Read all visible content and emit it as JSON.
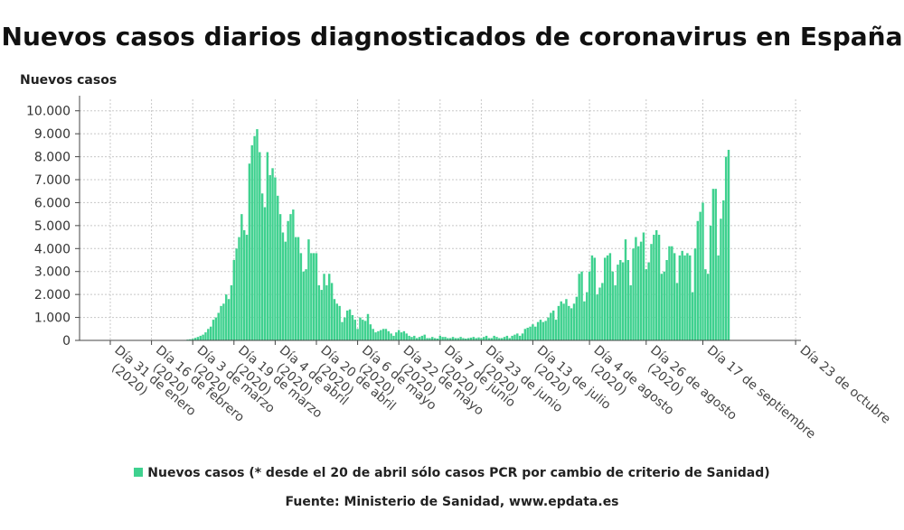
{
  "colors": {
    "bar": "#3fd18f",
    "grid": "#c8c8c8",
    "axis": "#444444",
    "text": "#222222"
  },
  "chart_data": {
    "type": "bar",
    "title": "Nuevos casos diarios diagnosticados de coronavirus en España",
    "ylabel": "Nuevos casos",
    "xlabel": "",
    "ylim": [
      0,
      10500
    ],
    "yticks": [
      {
        "value": 0,
        "label": "0"
      },
      {
        "value": 1000,
        "label": "1.000"
      },
      {
        "value": 2000,
        "label": "2.000"
      },
      {
        "value": 3000,
        "label": "3.000"
      },
      {
        "value": 4000,
        "label": "4.000"
      },
      {
        "value": 5000,
        "label": "5.000"
      },
      {
        "value": 6000,
        "label": "6.000"
      },
      {
        "value": 7000,
        "label": "7.000"
      },
      {
        "value": 8000,
        "label": "8.000"
      },
      {
        "value": 9000,
        "label": "9.000"
      },
      {
        "value": 10000,
        "label": "10.000"
      }
    ],
    "xticks": [
      {
        "day_index": 0,
        "lines": [
          "Día 31 de enero",
          "(2020)"
        ]
      },
      {
        "day_index": 16,
        "lines": [
          "Día 16 de febrero",
          "(2020)"
        ]
      },
      {
        "day_index": 32,
        "lines": [
          "Día 3 de marzo",
          "(2020)"
        ]
      },
      {
        "day_index": 48,
        "lines": [
          "Día 19 de marzo",
          "(2020)"
        ]
      },
      {
        "day_index": 64,
        "lines": [
          "Día 4 de abril",
          "(2020)"
        ]
      },
      {
        "day_index": 80,
        "lines": [
          "Día 20 de abril",
          "(2020)"
        ]
      },
      {
        "day_index": 96,
        "lines": [
          "Día 6 de mayo",
          "(2020)"
        ]
      },
      {
        "day_index": 112,
        "lines": [
          "Día 22 de mayo",
          "(2020)"
        ]
      },
      {
        "day_index": 128,
        "lines": [
          "Día 7 de junio",
          "(2020)"
        ]
      },
      {
        "day_index": 144,
        "lines": [
          "Día 23 de junio",
          "(2020)"
        ]
      },
      {
        "day_index": 164,
        "lines": [
          "Día 13 de julio",
          "(2020)"
        ]
      },
      {
        "day_index": 186,
        "lines": [
          "Día 4 de agosto",
          "(2020)"
        ]
      },
      {
        "day_index": 208,
        "lines": [
          "Día 26 de agosto",
          "(2020)"
        ]
      },
      {
        "day_index": 230,
        "lines": [
          "Día 17 de septiembre"
        ]
      },
      {
        "day_index": 266,
        "lines": [
          "Día 23 de octubre"
        ]
      }
    ],
    "series": [
      {
        "name": "Nuevos casos (* desde el 20 de abril sólo casos PCR por cambio de criterio de Sanidad)",
        "start_date": "2020-01-31",
        "values": [
          1,
          0,
          0,
          0,
          0,
          0,
          0,
          0,
          0,
          1,
          0,
          0,
          0,
          0,
          0,
          0,
          0,
          0,
          0,
          0,
          0,
          0,
          0,
          0,
          0,
          3,
          10,
          8,
          15,
          20,
          35,
          50,
          65,
          110,
          150,
          200,
          250,
          350,
          500,
          600,
          900,
          1000,
          1200,
          1500,
          1600,
          2000,
          1800,
          2400,
          3500,
          4000,
          4500,
          5500,
          4800,
          4600,
          7700,
          8500,
          8900,
          9200,
          8200,
          6400,
          5800,
          8200,
          7200,
          7500,
          7100,
          6300,
          5500,
          4700,
          4300,
          5200,
          5500,
          5700,
          4500,
          4500,
          3800,
          3000,
          3100,
          4400,
          3800,
          3800,
          3800,
          2400,
          2200,
          2900,
          2400,
          2900,
          2500,
          1800,
          1600,
          1500,
          800,
          1000,
          1300,
          1350,
          1100,
          900,
          500,
          1000,
          900,
          850,
          1150,
          700,
          500,
          350,
          400,
          450,
          500,
          500,
          400,
          300,
          200,
          350,
          450,
          350,
          400,
          300,
          200,
          150,
          200,
          100,
          150,
          200,
          250,
          100,
          100,
          150,
          100,
          80,
          200,
          150,
          150,
          100,
          100,
          150,
          100,
          100,
          150,
          100,
          80,
          100,
          120,
          150,
          100,
          130,
          100,
          150,
          200,
          100,
          100,
          200,
          150,
          100,
          100,
          150,
          200,
          100,
          200,
          250,
          300,
          200,
          300,
          500,
          550,
          600,
          700,
          600,
          800,
          900,
          800,
          850,
          1000,
          1200,
          1300,
          900,
          1500,
          1700,
          1600,
          1800,
          1500,
          1400,
          1600,
          1900,
          2900,
          3000,
          1700,
          2100,
          3000,
          3700,
          3600,
          2000,
          2300,
          2500,
          3600,
          3700,
          3800,
          3000,
          2400,
          3300,
          3500,
          3400,
          4400,
          3500,
          2400,
          4000,
          4500,
          4100,
          4300,
          4700,
          3100,
          3400,
          4200,
          4600,
          4800,
          4600,
          2900,
          3000,
          3500,
          4100,
          4100,
          3800,
          2500,
          3700,
          3900,
          3700,
          3800,
          3700,
          2100,
          4000,
          5200,
          5600,
          6000,
          3100,
          2900,
          5000,
          6600,
          6600,
          3700,
          5300,
          6100,
          8000,
          8300
        ]
      }
    ]
  },
  "legend": {
    "label": "Nuevos casos (* desde el 20 de abril sólo casos PCR por cambio de criterio de Sanidad)"
  },
  "source": "Fuente: Ministerio de Sanidad, www.epdata.es"
}
